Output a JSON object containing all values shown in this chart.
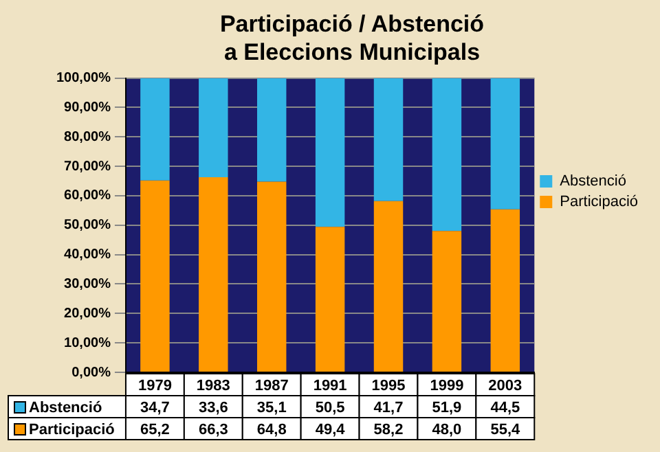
{
  "chart_data": {
    "type": "bar",
    "title": "Participació / Abstenció\na Eleccions Municipals",
    "categories": [
      "1979",
      "1983",
      "1987",
      "1991",
      "1995",
      "1999",
      "2003"
    ],
    "stacked": true,
    "series": [
      {
        "name": "Participació",
        "color": "#ff9900",
        "values": [
          65.2,
          66.3,
          64.8,
          49.4,
          58.2,
          48.0,
          55.4
        ],
        "value_labels": [
          "65,2",
          "66,3",
          "64,8",
          "49,4",
          "58,2",
          "48,0",
          "55,4"
        ]
      },
      {
        "name": "Abstenció",
        "color": "#33b5e5",
        "values": [
          34.7,
          33.6,
          35.1,
          50.5,
          41.7,
          51.9,
          44.5
        ],
        "value_labels": [
          "34,7",
          "33,6",
          "35,1",
          "50,5",
          "41,7",
          "51,9",
          "44,5"
        ]
      }
    ],
    "ylim": [
      0,
      100
    ],
    "yticks": [
      {
        "value": 0,
        "label": "0,00%"
      },
      {
        "value": 10,
        "label": "10,00%"
      },
      {
        "value": 20,
        "label": "20,00%"
      },
      {
        "value": 30,
        "label": "30,00%"
      },
      {
        "value": 40,
        "label": "40,00%"
      },
      {
        "value": 50,
        "label": "50,00%"
      },
      {
        "value": 60,
        "label": "60,00%"
      },
      {
        "value": 70,
        "label": "70,00%"
      },
      {
        "value": 80,
        "label": "80,00%"
      },
      {
        "value": 90,
        "label": "90,00%"
      },
      {
        "value": 100,
        "label": "100,00%"
      }
    ],
    "grid": "y",
    "legend": "right"
  }
}
